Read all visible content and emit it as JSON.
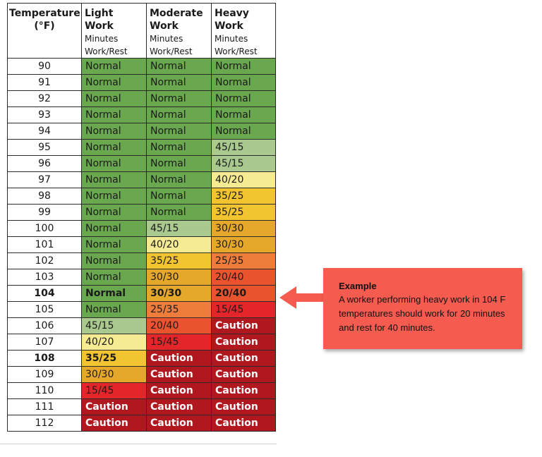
{
  "table": {
    "headers": {
      "temperature": {
        "title": "Temperature",
        "unit": "(°F)"
      },
      "light": {
        "title": "Light",
        "title2": "Work",
        "sub1": "Minutes",
        "sub2": "Work/Rest"
      },
      "moderate": {
        "title": "Moderate",
        "title2": "Work",
        "sub1": "Minutes",
        "sub2": "Work/Rest"
      },
      "heavy": {
        "title": "Heavy",
        "title2": "Work",
        "sub1": "Minutes",
        "sub2": "Work/Rest"
      }
    },
    "rows": [
      {
        "temp": "90",
        "light": "Normal",
        "moderate": "Normal",
        "heavy": "Normal"
      },
      {
        "temp": "91",
        "light": "Normal",
        "moderate": "Normal",
        "heavy": "Normal"
      },
      {
        "temp": "92",
        "light": "Normal",
        "moderate": "Normal",
        "heavy": "Normal"
      },
      {
        "temp": "93",
        "light": "Normal",
        "moderate": "Normal",
        "heavy": "Normal"
      },
      {
        "temp": "94",
        "light": "Normal",
        "moderate": "Normal",
        "heavy": "Normal"
      },
      {
        "temp": "95",
        "light": "Normal",
        "moderate": "Normal",
        "heavy": "45/15"
      },
      {
        "temp": "96",
        "light": "Normal",
        "moderate": "Normal",
        "heavy": "45/15"
      },
      {
        "temp": "97",
        "light": "Normal",
        "moderate": "Normal",
        "heavy": "40/20"
      },
      {
        "temp": "98",
        "light": "Normal",
        "moderate": "Normal",
        "heavy": "35/25"
      },
      {
        "temp": "99",
        "light": "Normal",
        "moderate": "Normal",
        "heavy": "35/25"
      },
      {
        "temp": "100",
        "light": "Normal",
        "moderate": "45/15",
        "heavy": "30/30"
      },
      {
        "temp": "101",
        "light": "Normal",
        "moderate": "40/20",
        "heavy": "30/30"
      },
      {
        "temp": "102",
        "light": "Normal",
        "moderate": "35/25",
        "heavy": "25/35"
      },
      {
        "temp": "103",
        "light": "Normal",
        "moderate": "30/30",
        "heavy": "20/40"
      },
      {
        "temp": "104",
        "light": "Normal",
        "moderate": "30/30",
        "heavy": "20/40"
      },
      {
        "temp": "105",
        "light": "Normal",
        "moderate": "25/35",
        "heavy": "15/45"
      },
      {
        "temp": "106",
        "light": "45/15",
        "moderate": "20/40",
        "heavy": "Caution"
      },
      {
        "temp": "107",
        "light": "40/20",
        "moderate": "15/45",
        "heavy": "Caution"
      },
      {
        "temp": "108",
        "light": "35/25",
        "moderate": "Caution",
        "heavy": "Caution"
      },
      {
        "temp": "109",
        "light": "30/30",
        "moderate": "Caution",
        "heavy": "Caution"
      },
      {
        "temp": "110",
        "light": "15/45",
        "moderate": "Caution",
        "heavy": "Caution"
      },
      {
        "temp": "111",
        "light": "Caution",
        "moderate": "Caution",
        "heavy": "Caution"
      },
      {
        "temp": "112",
        "light": "Caution",
        "moderate": "Caution",
        "heavy": "Caution"
      }
    ]
  },
  "callout": {
    "title": "Example",
    "text": "A worker performing heavy work in 104 F temperatures should work for 20 minutes and rest for 40 minutes.",
    "color": "#f55b4f"
  },
  "colors": {
    "Normal": "#6aa84f",
    "45/15": "#a9c98f",
    "40/20": "#f6eb93",
    "35/25": "#f2c430",
    "30/30": "#e6a82a",
    "25/35": "#ee7c3a",
    "20/40": "#e9542f",
    "15/45": "#e4262b",
    "Caution": "#b1171f"
  }
}
